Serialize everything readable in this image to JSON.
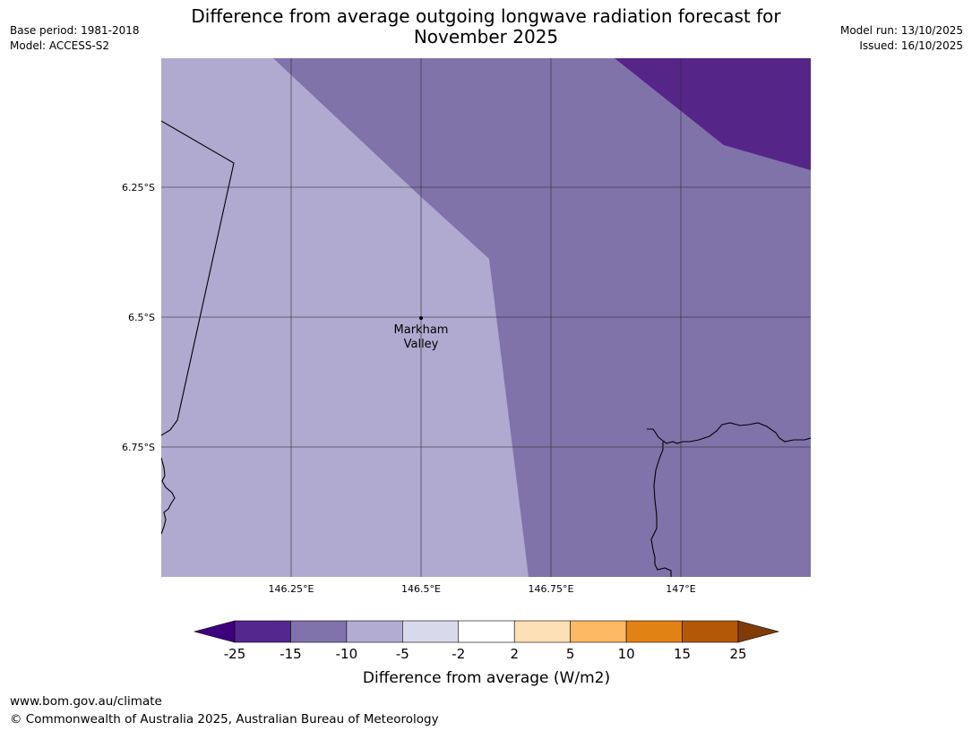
{
  "header": {
    "base_period": "Base period: 1981-2018",
    "model": "Model: ACCESS-S2",
    "title_line1": "Difference from average outgoing longwave radiation forecast for",
    "title_line2": "November 2025",
    "model_run": "Model run: 13/10/2025",
    "issued": "Issued: 16/10/2025"
  },
  "map": {
    "lat_labels": [
      "6.25°S",
      "6.5°S",
      "6.75°S"
    ],
    "lon_labels": [
      "146.25°E",
      "146.5°E",
      "146.75°E",
      "147°E"
    ],
    "location": {
      "name_line1": "Markham",
      "name_line2": "Valley",
      "lon": 146.5,
      "lat": -6.5
    },
    "region_classes": {
      "west": "-10 to -5",
      "east": "-15 to -10",
      "northeast_corner": "-25 to -15"
    }
  },
  "colorbar": {
    "label": "Difference from average (W/m2)",
    "ticks": [
      "-25",
      "-15",
      "-10",
      "-5",
      "-2",
      "2",
      "5",
      "10",
      "15",
      "25"
    ],
    "colors": [
      "#3f007d",
      "#54278f",
      "#8073ac",
      "#b2abd2",
      "#d8daeb",
      "#ffffff",
      "#fee0b6",
      "#fdb863",
      "#e08214",
      "#b35806",
      "#7f3b08"
    ]
  },
  "footer": {
    "url": "www.bom.gov.au/climate",
    "copyright": "© Commonwealth of Australia 2025, Australian Bureau of Meteorology"
  }
}
